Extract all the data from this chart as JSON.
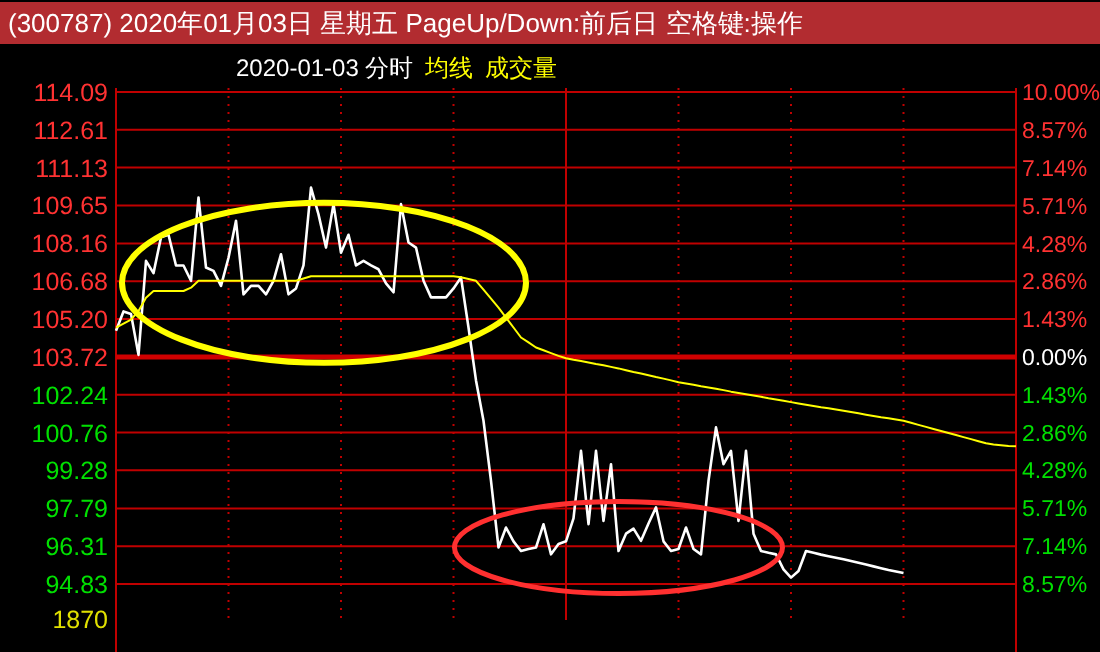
{
  "chart_data": {
    "type": "line",
    "title": "(300787) 2020年01月03日 星期五 PageUp/Down:前后日 空格键:操作",
    "subtitle": "2020-01-03 分时",
    "annotations": [
      "成交量",
      "1870"
    ],
    "categories": [
      null,
      null,
      null,
      null,
      null,
      null,
      null,
      null,
      null,
      null,
      null,
      null,
      null,
      null,
      null,
      null,
      null,
      null,
      null,
      null,
      null,
      null,
      null,
      null,
      null,
      null,
      null,
      null,
      null,
      null,
      null,
      null,
      null,
      null,
      null,
      null,
      null,
      null,
      null,
      null,
      null,
      null,
      null,
      null,
      null,
      null,
      null,
      null,
      null,
      null,
      null,
      null,
      null,
      null,
      null,
      null,
      null,
      null,
      null,
      null,
      null,
      null,
      null,
      null,
      null,
      null,
      null,
      null,
      null,
      null,
      null,
      null,
      null,
      null,
      null,
      null,
      null,
      null,
      null,
      null,
      null,
      null,
      null,
      null,
      null,
      null,
      null,
      null,
      null,
      null,
      null,
      null,
      null,
      null,
      null,
      null,
      null,
      null,
      null,
      null,
      null,
      null,
      null,
      null,
      null,
      null,
      null,
      null,
      null,
      null,
      null,
      null,
      null,
      null,
      null,
      null,
      null,
      null,
      null,
      null,
      null
    ],
    "series": [
      {
        "color": "#ffffff",
        "values": [
          104.74,
          105.5,
          105.4,
          103.8,
          107.48,
          107.0,
          108.4,
          108.5,
          107.3,
          107.3,
          106.7,
          109.96,
          107.22,
          107.09,
          106.5,
          107.6,
          109.05,
          106.17,
          106.5,
          106.5,
          106.17,
          106.7,
          107.74,
          106.17,
          106.4,
          107.3,
          110.35,
          109.3,
          108.0,
          109.7,
          107.8,
          108.5,
          107.3,
          107.48,
          107.3,
          107.15,
          106.6,
          106.25,
          109.7,
          108.2,
          108.0,
          106.7,
          106.05,
          106.05,
          106.05,
          106.4,
          106.83,
          104.87,
          102.8,
          101.22,
          98.87,
          96.26,
          97.04,
          96.5,
          96.12,
          96.2,
          96.26,
          97.17,
          95.99,
          96.4,
          96.5,
          97.4,
          100.04,
          97.17,
          100.04,
          97.3,
          99.52,
          96.12,
          96.8,
          97.0,
          96.52,
          97.2,
          97.83,
          96.5,
          96.12,
          96.2,
          97.04,
          96.2,
          95.99,
          98.87,
          100.96,
          99.52,
          100.04,
          97.3,
          100.04,
          96.8,
          96.12,
          96.05,
          95.99,
          95.4,
          95.08,
          95.34,
          96.12,
          96.05,
          95.98,
          95.92,
          95.86,
          95.8,
          95.73,
          95.66,
          95.59,
          95.52,
          95.45,
          95.38,
          95.32,
          95.26,
          null,
          null,
          null,
          null,
          null,
          null,
          null,
          null,
          null,
          null,
          null,
          null,
          null,
          null,
          null
        ]
      },
      {
        "name": "均线",
        "color": "#ffff00",
        "values": [
          104.87,
          105.02,
          105.18,
          105.52,
          106.04,
          106.3,
          106.3,
          106.3,
          106.3,
          106.3,
          106.43,
          106.7,
          106.7,
          106.7,
          106.7,
          106.7,
          106.7,
          106.7,
          106.7,
          106.7,
          106.7,
          106.7,
          106.7,
          106.7,
          106.7,
          106.79,
          106.88,
          106.88,
          106.88,
          106.88,
          106.88,
          106.88,
          106.88,
          106.88,
          106.88,
          106.88,
          106.88,
          106.88,
          106.88,
          106.88,
          106.88,
          106.88,
          106.88,
          106.88,
          106.88,
          106.88,
          106.84,
          106.77,
          106.7,
          106.35,
          106.0,
          105.65,
          105.26,
          104.87,
          104.48,
          104.29,
          104.09,
          103.98,
          103.87,
          103.76,
          103.67,
          103.61,
          103.56,
          103.5,
          103.44,
          103.39,
          103.33,
          103.27,
          103.2,
          103.13,
          103.07,
          103.0,
          102.93,
          102.87,
          102.8,
          102.73,
          102.68,
          102.63,
          102.57,
          102.52,
          102.47,
          102.42,
          102.36,
          102.31,
          102.26,
          102.21,
          102.16,
          102.1,
          102.05,
          102.0,
          101.95,
          101.9,
          101.85,
          101.8,
          101.75,
          101.71,
          101.66,
          101.61,
          101.56,
          101.51,
          101.46,
          101.41,
          101.36,
          101.32,
          101.27,
          101.22,
          101.14,
          101.06,
          100.98,
          100.9,
          100.82,
          100.74,
          100.66,
          100.58,
          100.5,
          100.42,
          100.34,
          100.29,
          100.26,
          100.23,
          100.22
        ]
      }
    ],
    "ylim": [
      94.83,
      114.09
    ],
    "yticks": [
      {
        "value": 114.09,
        "label": "114.09"
      },
      {
        "value": 112.61,
        "label": "112.61"
      },
      {
        "value": 111.13,
        "label": "111.13"
      },
      {
        "value": 109.65,
        "label": "109.65"
      },
      {
        "value": 108.16,
        "label": "108.16"
      },
      {
        "value": 106.68,
        "label": "106.68"
      },
      {
        "value": 105.2,
        "label": "105.20"
      },
      {
        "value": 103.72,
        "label": "103.72"
      },
      {
        "value": 102.24,
        "label": "102.24"
      },
      {
        "value": 100.76,
        "label": "100.76"
      },
      {
        "value": 99.28,
        "label": "99.28"
      },
      {
        "value": 97.79,
        "label": "97.79"
      },
      {
        "value": 96.31,
        "label": "96.31"
      },
      {
        "value": 94.83,
        "label": "94.83"
      }
    ],
    "y2lim": [
      -8.57,
      10
    ],
    "y2ticks": [
      {
        "value": 10,
        "label": "10.00%"
      },
      {
        "value": 8.57,
        "label": "8.57%"
      },
      {
        "value": 7.14,
        "label": "7.14%"
      },
      {
        "value": 5.71,
        "label": "5.71%"
      },
      {
        "value": 4.28,
        "label": "4.28%"
      },
      {
        "value": 2.86,
        "label": "2.86%"
      },
      {
        "value": 1.43,
        "label": "1.43%"
      },
      {
        "value": 0,
        "label": "0.00%"
      },
      {
        "value": -1.43,
        "label": "1.43%"
      },
      {
        "value": -2.86,
        "label": "2.86%"
      },
      {
        "value": -4.28,
        "label": "4.28%"
      },
      {
        "value": -5.71,
        "label": "5.71%"
      },
      {
        "value": -7.14,
        "label": "7.14%"
      },
      {
        "value": -8.57,
        "label": "8.57%"
      }
    ],
    "ref_lines": [
      {
        "axis": "y2",
        "value": 0,
        "color": "#d00000"
      }
    ],
    "grid": true,
    "tick_labels": "y",
    "line_style": "solid"
  }
}
